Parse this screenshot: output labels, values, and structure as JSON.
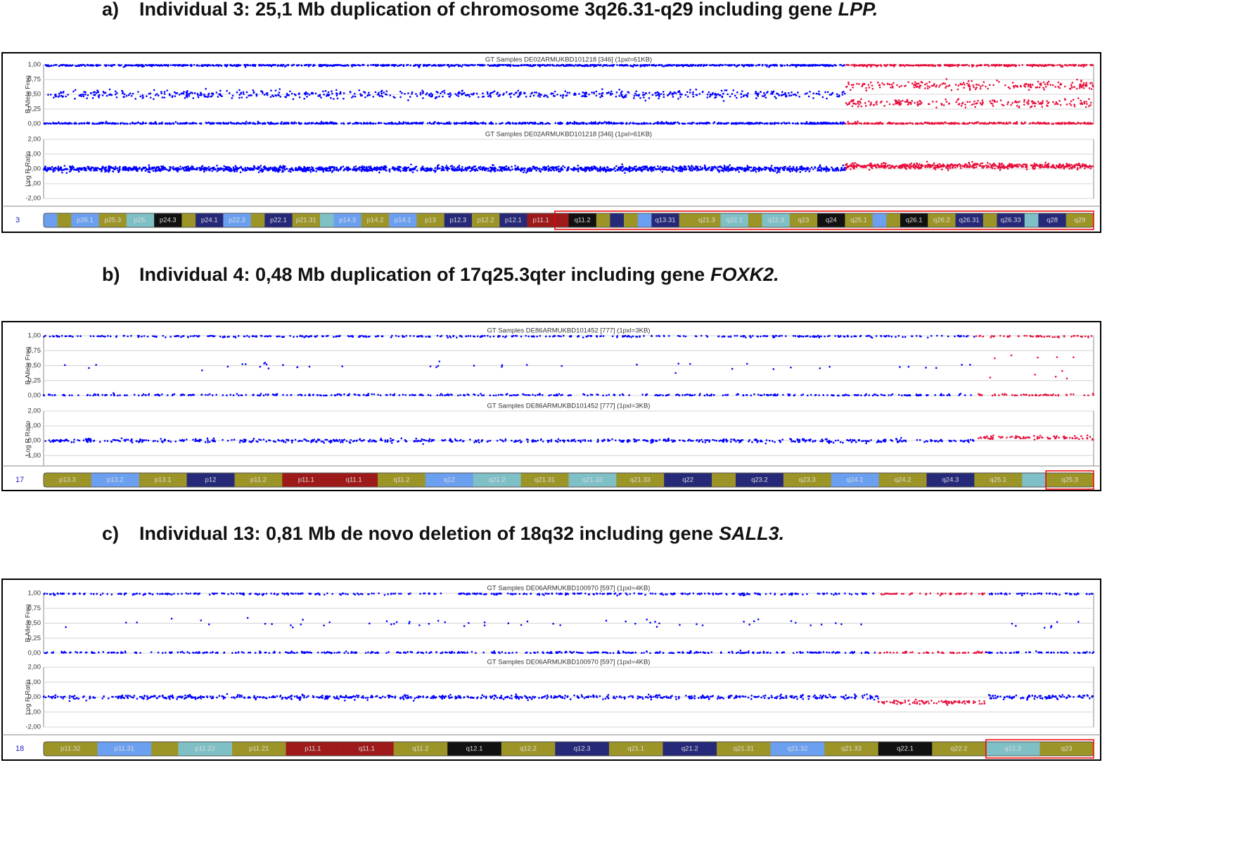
{
  "palette": {
    "olive": "#9c9426",
    "lightblue": "#6b9ff0",
    "navy": "#262878",
    "black": "#111111",
    "teal": "#7fbfc6",
    "red": "#9e1a1a"
  },
  "panels": [
    {
      "prefix": "a)",
      "title": "Individual 3: 25,1 Mb duplication of chromosome 3q26.31-q29 including gene",
      "gene": "LPP.",
      "baf": {
        "header": "GT Samples DE02ARMUKBD101218 [346]  (1pxl=61KB)",
        "ylabel": "B Allele Freq",
        "ylim": [
          0,
          1
        ],
        "yticks": [
          {
            "value": 1,
            "label": "1,00"
          },
          {
            "value": 0.75,
            "label": "0,75"
          },
          {
            "value": 0.5,
            "label": "0,50"
          },
          {
            "value": 0.25,
            "label": "0,25"
          },
          {
            "value": 0,
            "label": "0,00"
          }
        ]
      },
      "lrr": {
        "header": "GT Samples DE02ARMUKBD101218 [346]  (1pxl=61KB)",
        "ylabel": "Log R Ratio",
        "ylim": [
          -2,
          2
        ],
        "yticks": [
          {
            "value": 2,
            "label": "2,00"
          },
          {
            "value": 1,
            "label": "1,00"
          },
          {
            "value": 0,
            "label": "0,00"
          },
          {
            "value": -1,
            "label": "-1,00"
          },
          {
            "value": -2,
            "label": "-2,00"
          }
        ]
      },
      "chromosome": "3",
      "bands": [
        {
          "label": null,
          "stain": "lightblue"
        },
        {
          "label": null,
          "stain": "olive"
        },
        {
          "label": "p26.1",
          "stain": "lightblue"
        },
        {
          "label": "p25.3",
          "stain": "olive"
        },
        {
          "label": "p25.",
          "stain": "teal"
        },
        {
          "label": "p24.3",
          "stain": "black"
        },
        {
          "label": null,
          "stain": "olive"
        },
        {
          "label": "p24.1",
          "stain": "navy"
        },
        {
          "label": "p22.3",
          "stain": "lightblue"
        },
        {
          "label": null,
          "stain": "olive"
        },
        {
          "label": "p22.1",
          "stain": "navy"
        },
        {
          "label": "p21.31",
          "stain": "olive"
        },
        {
          "label": null,
          "stain": "teal"
        },
        {
          "label": "p14.3",
          "stain": "lightblue"
        },
        {
          "label": "p14.2",
          "stain": "olive"
        },
        {
          "label": "p14.1",
          "stain": "lightblue"
        },
        {
          "label": "p13",
          "stain": "olive"
        },
        {
          "label": "p12.3",
          "stain": "navy"
        },
        {
          "label": "p12.2",
          "stain": "olive"
        },
        {
          "label": "p12.1",
          "stain": "navy"
        },
        {
          "label": "p11.1",
          "stain": "red"
        },
        {
          "label": null,
          "stain": "red",
          "highlighted": true
        },
        {
          "label": "q11.2",
          "stain": "black",
          "highlighted": true
        },
        {
          "label": null,
          "stain": "olive",
          "highlighted": true
        },
        {
          "label": null,
          "stain": "navy",
          "highlighted": true
        },
        {
          "label": null,
          "stain": "olive",
          "highlighted": true
        },
        {
          "label": null,
          "stain": "lightblue",
          "highlighted": true
        },
        {
          "label": "q13.31",
          "stain": "navy",
          "highlighted": true
        },
        {
          "label": null,
          "stain": "olive",
          "highlighted": true
        },
        {
          "label": "q21.3",
          "stain": "olive",
          "highlighted": true
        },
        {
          "label": "q22.1",
          "stain": "teal",
          "highlighted": true
        },
        {
          "label": null,
          "stain": "olive",
          "highlighted": true
        },
        {
          "label": "q22.3",
          "stain": "teal",
          "highlighted": true
        },
        {
          "label": "q23",
          "stain": "olive",
          "highlighted": true
        },
        {
          "label": "q24",
          "stain": "black",
          "highlighted": true
        },
        {
          "label": "q25.1",
          "stain": "olive",
          "highlighted": true
        },
        {
          "label": null,
          "stain": "lightblue",
          "highlighted": true
        },
        {
          "label": null,
          "stain": "olive",
          "highlighted": true
        },
        {
          "label": "q26.1",
          "stain": "black",
          "highlighted": true
        },
        {
          "label": "q26.2",
          "stain": "olive",
          "highlighted": true
        },
        {
          "label": "q26.31",
          "stain": "navy",
          "highlighted": true
        },
        {
          "label": null,
          "stain": "olive",
          "highlighted": true
        },
        {
          "label": "q26.33",
          "stain": "navy",
          "highlighted": true
        },
        {
          "label": null,
          "stain": "teal",
          "highlighted": true
        },
        {
          "label": "q28",
          "stain": "navy",
          "highlighted": true
        },
        {
          "label": "q29",
          "stain": "olive",
          "highlighted": true
        }
      ],
      "segments": [
        {
          "from_band": 0,
          "to_band": 34,
          "color": "#0000ff",
          "baf_levels": [
            0,
            0.5,
            1
          ],
          "lrr_level": 0
        },
        {
          "from_band": 35,
          "to_band": 45,
          "color": "#e8103c",
          "baf_levels": [
            0,
            0.35,
            0.65,
            1
          ],
          "lrr_level": 0.2
        }
      ]
    },
    {
      "prefix": "b)",
      "title": "Individual 4: 0,48 Mb duplication of 17q25.3qter including gene",
      "gene": "FOXK2.",
      "baf": {
        "header": "GT Samples DE86ARMUKBD101452 [777]  (1pxl=3KB)",
        "ylabel": "B Allele Freq",
        "ylim": [
          0,
          1
        ],
        "yticks": [
          {
            "value": 1,
            "label": "1,00"
          },
          {
            "value": 0.75,
            "label": "0,75"
          },
          {
            "value": 0.5,
            "label": "0,50"
          },
          {
            "value": 0.25,
            "label": "0,25"
          },
          {
            "value": 0,
            "label": "0,00"
          }
        ]
      },
      "lrr": {
        "header": "GT Samples DE86ARMUKBD101452 [777]  (1pxl=3KB)",
        "ylabel": "Log R Ratio",
        "ylim": [
          -1.7,
          2
        ],
        "yticks": [
          {
            "value": 2,
            "label": "2,00"
          },
          {
            "value": 1,
            "label": "1,00"
          },
          {
            "value": 0,
            "label": "0,00"
          },
          {
            "value": -1,
            "label": "-1,00"
          }
        ]
      },
      "chromosome": "17",
      "bands": [
        {
          "label": "p13.3",
          "stain": "olive"
        },
        {
          "label": "p13.2",
          "stain": "lightblue"
        },
        {
          "label": "p13.1",
          "stain": "olive"
        },
        {
          "label": "p12",
          "stain": "navy"
        },
        {
          "label": "p11.2",
          "stain": "olive"
        },
        {
          "label": "p11.1",
          "stain": "red"
        },
        {
          "label": "q11.1",
          "stain": "red"
        },
        {
          "label": "q11.2",
          "stain": "olive"
        },
        {
          "label": "q12",
          "stain": "lightblue"
        },
        {
          "label": "q21.2",
          "stain": "teal"
        },
        {
          "label": "q21.31",
          "stain": "olive"
        },
        {
          "label": "q21.32",
          "stain": "teal"
        },
        {
          "label": "q21.33",
          "stain": "olive"
        },
        {
          "label": "q22",
          "stain": "navy"
        },
        {
          "label": null,
          "stain": "olive"
        },
        {
          "label": "q23.2",
          "stain": "navy"
        },
        {
          "label": "q23.3",
          "stain": "olive"
        },
        {
          "label": "q24.1",
          "stain": "lightblue"
        },
        {
          "label": "q24.2",
          "stain": "olive"
        },
        {
          "label": "q24.3",
          "stain": "navy"
        },
        {
          "label": "q25.1",
          "stain": "olive"
        },
        {
          "label": null,
          "stain": "teal"
        },
        {
          "label": "q25.3",
          "stain": "olive",
          "highlighted": true
        }
      ],
      "segments": [
        {
          "from_band": 0,
          "to_band": 19,
          "color": "#0000ff",
          "baf_levels": [
            0,
            0.5,
            1
          ],
          "lrr_level": 0
        },
        {
          "from_band": 20,
          "to_band": 22,
          "color": "#e8103c",
          "baf_levels": [
            0,
            0.35,
            0.65,
            1
          ],
          "lrr_level": 0.2
        }
      ]
    },
    {
      "prefix": "c)",
      "title": "Individual 13: 0,81 Mb de novo deletion of 18q32 including gene",
      "gene": "SALL3.",
      "baf": {
        "header": "GT Samples DE06ARMUKBD100970 [597]  (1pxl=4KB)",
        "ylabel": "B Allele Freq",
        "ylim": [
          0,
          1
        ],
        "yticks": [
          {
            "value": 1,
            "label": "1,00"
          },
          {
            "value": 0.75,
            "label": "0,75"
          },
          {
            "value": 0.5,
            "label": "0,50"
          },
          {
            "value": 0.25,
            "label": "0,25"
          },
          {
            "value": 0,
            "label": "0,00"
          }
        ]
      },
      "lrr": {
        "header": "GT Samples DE06ARMUKBD100970 [597]  (1pxl=4KB)",
        "ylabel": "Log R Ratio",
        "ylim": [
          -2,
          2
        ],
        "yticks": [
          {
            "value": 2,
            "label": "2,00"
          },
          {
            "value": 1,
            "label": "1,00"
          },
          {
            "value": 0,
            "label": "0,00"
          },
          {
            "value": -1,
            "label": "-1,00"
          },
          {
            "value": -2,
            "label": "-2,00"
          }
        ]
      },
      "chromosome": "18",
      "bands": [
        {
          "label": "p11.32",
          "stain": "olive"
        },
        {
          "label": "p11.31",
          "stain": "lightblue"
        },
        {
          "label": null,
          "stain": "olive"
        },
        {
          "label": "p11.22",
          "stain": "teal"
        },
        {
          "label": "p11.21",
          "stain": "olive"
        },
        {
          "label": "p11.1",
          "stain": "red"
        },
        {
          "label": "q11.1",
          "stain": "red"
        },
        {
          "label": "q11.2",
          "stain": "olive"
        },
        {
          "label": "q12.1",
          "stain": "black"
        },
        {
          "label": "q12.2",
          "stain": "olive"
        },
        {
          "label": "q12.3",
          "stain": "navy"
        },
        {
          "label": "q21.1",
          "stain": "olive"
        },
        {
          "label": "q21.2",
          "stain": "navy"
        },
        {
          "label": "q21.31",
          "stain": "olive"
        },
        {
          "label": "q21.32",
          "stain": "lightblue"
        },
        {
          "label": "q21.33",
          "stain": "olive"
        },
        {
          "label": "q22.1",
          "stain": "black"
        },
        {
          "label": "q22.2",
          "stain": "olive"
        },
        {
          "label": "q22.3",
          "stain": "teal",
          "highlighted": true
        },
        {
          "label": "q23",
          "stain": "olive",
          "highlighted": true
        }
      ],
      "segments": [
        {
          "from_band": 0,
          "to_band": 15,
          "color": "#0000ff",
          "baf_levels": [
            0,
            0.5,
            1
          ],
          "lrr_level": 0
        },
        {
          "from_band": 16,
          "to_band": 17,
          "color": "#e8103c",
          "baf_levels": [
            0,
            1
          ],
          "lrr_level": -0.35
        },
        {
          "from_band": 18,
          "to_band": 19,
          "color": "#0000ff",
          "baf_levels": [
            0,
            0.5,
            1
          ],
          "lrr_level": 0
        }
      ]
    }
  ]
}
